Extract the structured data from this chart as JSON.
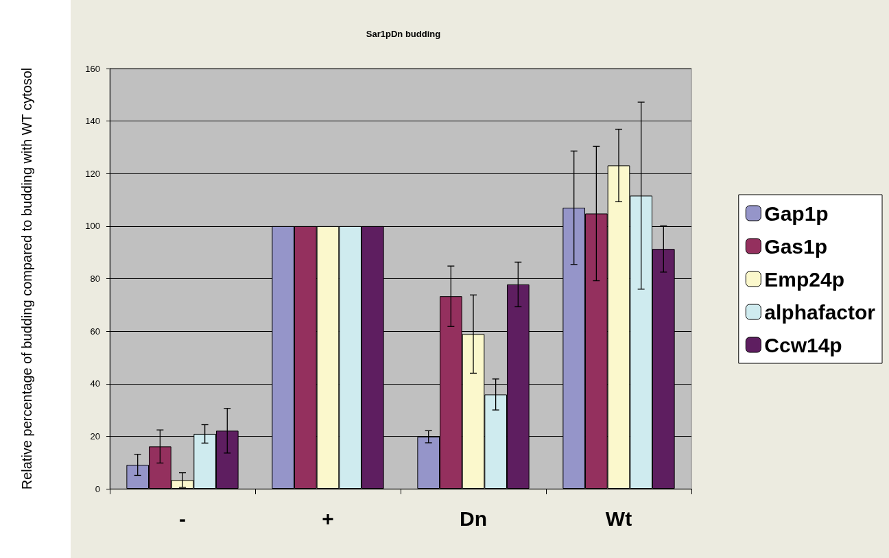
{
  "chart_data": {
    "type": "bar",
    "title": "Sar1pDn budding",
    "ylabel": "Relative percentage of budding compared to budding with WT cytosol",
    "categories": [
      "-",
      "+",
      "Dn",
      "Wt"
    ],
    "series": [
      {
        "name": "Gap1p",
        "color": "#9595c9",
        "values": [
          9.1,
          100,
          19.8,
          107
        ],
        "errors": [
          4,
          null,
          2.3,
          21.6
        ]
      },
      {
        "name": "Gas1p",
        "color": "#94305e",
        "values": [
          16.1,
          100,
          73.3,
          104.8
        ],
        "errors": [
          6.3,
          null,
          11.5,
          25.6
        ]
      },
      {
        "name": "Emp24p",
        "color": "#fbf8cc",
        "values": [
          3.3,
          100,
          58.9,
          123.1
        ],
        "errors": [
          2.8,
          null,
          14.9,
          13.8
        ]
      },
      {
        "name": "alphafactor",
        "color": "#cfebef",
        "values": [
          20.9,
          100,
          35.9,
          111.6
        ],
        "errors": [
          3.5,
          null,
          5.9,
          35.6
        ]
      },
      {
        "name": "Ccw14p",
        "color": "#5e1e60",
        "values": [
          22.1,
          100,
          77.8,
          91.3
        ],
        "errors": [
          8.5,
          null,
          8.5,
          8.8
        ]
      }
    ],
    "ylim": [
      0,
      160
    ],
    "yticks": [
      0,
      20,
      40,
      60,
      80,
      100,
      120,
      140,
      160
    ],
    "grid": "y",
    "legend": "right"
  }
}
